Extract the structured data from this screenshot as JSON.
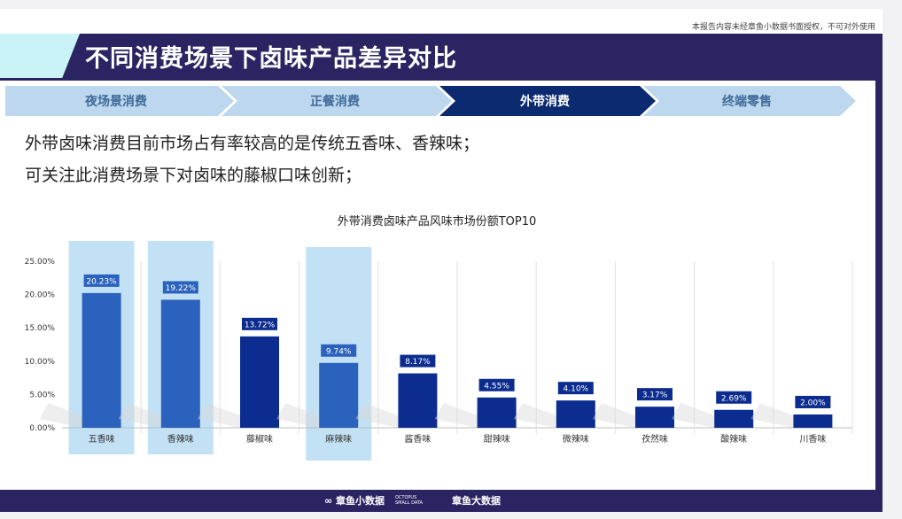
{
  "header": {
    "disclaimer": "本报告内容未经章鱼小数据书面授权，不可对外使用",
    "title": "不同消费场景下卤味产品差异对比"
  },
  "steps": [
    {
      "label": "夜场景消费",
      "active": false
    },
    {
      "label": "正餐消费",
      "active": false
    },
    {
      "label": "外带消费",
      "active": true
    },
    {
      "label": "终端零售",
      "active": false
    }
  ],
  "summary": {
    "line1": "外带卤味消费目前市场占有率较高的是传统五香味、香辣味；",
    "line2": "可关注此消费场景下对卤味的藤椒口味创新；"
  },
  "colors": {
    "active_step": "#0b2a6f",
    "inactive_step": "#bcd7ee",
    "highlight_bar": "#2b62bd",
    "normal_bar": "#0c2d8f",
    "highlight_band": "#c3e1f4"
  },
  "chart_data": {
    "type": "bar",
    "title": "外带消费卤味产品风味市场份额TOP10",
    "categories": [
      "五香味",
      "香辣味",
      "藤椒味",
      "麻辣味",
      "酱香味",
      "甜辣味",
      "微辣味",
      "孜然味",
      "酸辣味",
      "川香味"
    ],
    "values": [
      20.23,
      19.22,
      13.72,
      9.74,
      8.17,
      4.55,
      4.1,
      3.17,
      2.69,
      2.0
    ],
    "labels": [
      "20.23%",
      "19.22%",
      "13.72%",
      "9.74%",
      "8.17%",
      "4.55%",
      "4.10%",
      "3.17%",
      "2.69%",
      "2.00%"
    ],
    "highlighted": [
      "五香味",
      "香辣味",
      "麻辣味"
    ],
    "yticks": [
      "0.00%",
      "5.00%",
      "10.00%",
      "15.00%",
      "20.00%",
      "25.00%"
    ],
    "ylim": [
      0,
      25
    ],
    "xlabel": "",
    "ylabel": ""
  },
  "footer": {
    "brand1": "章鱼小数据",
    "brand1_en_1": "OCTOPUS",
    "brand1_en_2": "SMALL DATA",
    "brand2": "章鱼大数据"
  }
}
